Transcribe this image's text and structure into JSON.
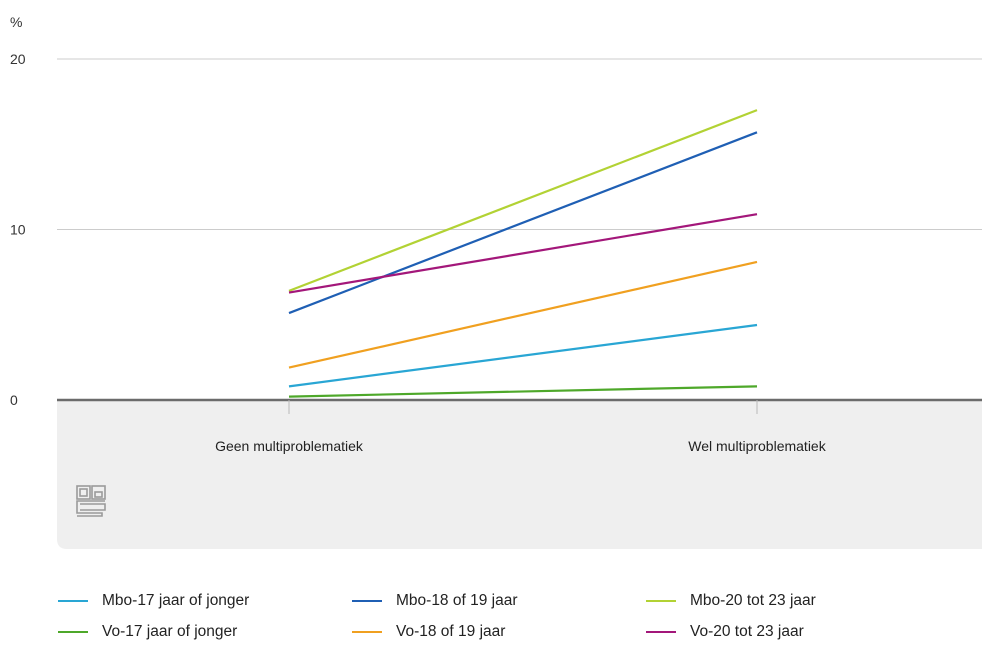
{
  "chart_data": {
    "type": "line",
    "y_unit": "%",
    "categories": [
      "Geen multiproblematiek",
      "Wel multiproblematiek"
    ],
    "ylim": [
      0,
      20
    ],
    "yticks": [
      0,
      10,
      20
    ],
    "grid": true,
    "legend_position": "bottom",
    "series": [
      {
        "name": "Mbo-17 jaar of jonger",
        "color": "#29a6d4",
        "values": [
          0.8,
          4.4
        ]
      },
      {
        "name": "Mbo-18 of 19 jaar",
        "color": "#1f5fb4",
        "values": [
          5.1,
          15.7
        ]
      },
      {
        "name": "Mbo-20 tot 23 jaar",
        "color": "#b2d234",
        "values": [
          6.4,
          17.0
        ]
      },
      {
        "name": "Vo-17 jaar of jonger",
        "color": "#4ea82a",
        "values": [
          0.2,
          0.8
        ]
      },
      {
        "name": "Vo-18 of 19 jaar",
        "color": "#f0a020",
        "values": [
          1.9,
          8.1
        ]
      },
      {
        "name": "Vo-20 tot 23 jaar",
        "color": "#a3177a",
        "values": [
          6.3,
          10.9
        ]
      }
    ]
  },
  "logo": {
    "name": "cbs-logo-icon",
    "text": "cbs"
  }
}
